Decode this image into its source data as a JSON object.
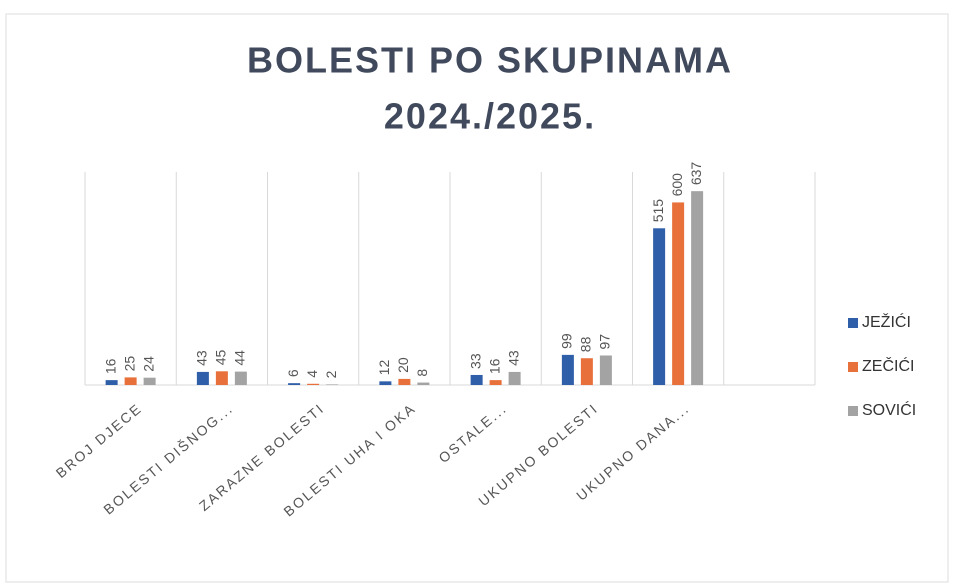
{
  "chart_data": {
    "type": "bar",
    "title": "BOLESTI PO SKUPINAMA",
    "subtitle": "2024./2025.",
    "categories": [
      "BROJ DJECE",
      "BOLESTI DIŠNOG...",
      "ZARAZNE BOLESTI",
      "BOLESTI UHA I OKA",
      "OSTALE...",
      "UKUPNO BOLESTI",
      "UKUPNO DANA...",
      null
    ],
    "series": [
      {
        "name": "JEŽIĆI",
        "color": "#2e5fa8",
        "values": [
          16,
          43,
          6,
          12,
          33,
          99,
          515,
          null
        ]
      },
      {
        "name": "ZEČIĆI",
        "color": "#e8703a",
        "values": [
          25,
          45,
          4,
          20,
          16,
          88,
          600,
          null
        ]
      },
      {
        "name": "SOVIĆI",
        "color": "#a3a3a3",
        "values": [
          24,
          44,
          2,
          8,
          43,
          97,
          637,
          null
        ]
      }
    ],
    "ylim": [
      0,
      700
    ],
    "legend": "right"
  }
}
